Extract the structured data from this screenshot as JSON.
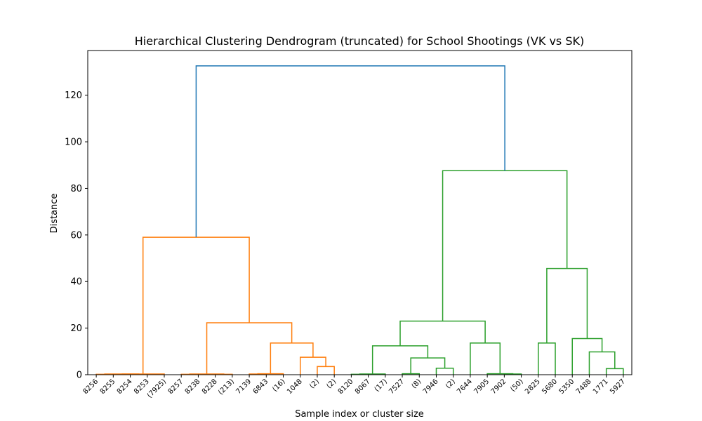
{
  "chart_data": {
    "type": "dendrogram",
    "title": "Hierarchical Clustering Dendrogram (truncated) for School Shootings (VK vs SK)",
    "xlabel": "Sample index or cluster size",
    "ylabel": "Distance",
    "ylim": [
      0,
      135
    ],
    "yticks": [
      0,
      20,
      40,
      60,
      80,
      100,
      120
    ],
    "leaves": [
      "8256",
      "8255",
      "8254",
      "8253",
      "(7925)",
      "8257",
      "8238",
      "8228",
      "(213)",
      "7139",
      "6843",
      "(16)",
      "1048",
      "(2)",
      "(2)",
      "8120",
      "8067",
      "(17)",
      "7527",
      "(8)",
      "7946",
      "(2)",
      "7644",
      "7905",
      "7902",
      "(50)",
      "2825",
      "5680",
      "5350",
      "7488",
      "1771",
      "5927"
    ],
    "link_colors": {
      "root": "#1f77b4",
      "cluster_1": "#ff7f0e",
      "cluster_2": "#2ca02c"
    },
    "merges": [
      {
        "left": 0,
        "right": 1,
        "height": 0.2,
        "color": "cluster_1"
      },
      {
        "left": 2,
        "right": 3,
        "height": 0.2,
        "color": "cluster_1"
      },
      {
        "left": 32,
        "right": 33,
        "height": 0.3,
        "color": "cluster_1"
      },
      {
        "left": 34,
        "right": 4,
        "height": 0.3,
        "color": "cluster_1"
      },
      {
        "left": 5,
        "right": 6,
        "height": 0.2,
        "color": "cluster_1"
      },
      {
        "left": 7,
        "right": 8,
        "height": 0.2,
        "color": "cluster_1"
      },
      {
        "left": 36,
        "right": 37,
        "height": 0.3,
        "color": "cluster_1"
      },
      {
        "left": 9,
        "right": 10,
        "height": 0.3,
        "color": "cluster_1"
      },
      {
        "left": 39,
        "right": 11,
        "height": 0.4,
        "color": "cluster_1"
      },
      {
        "left": 13,
        "right": 14,
        "height": 3.5,
        "color": "cluster_1"
      },
      {
        "left": 12,
        "right": 41,
        "height": 7.5,
        "color": "cluster_1"
      },
      {
        "left": 40,
        "right": 42,
        "height": 13.6,
        "color": "cluster_1"
      },
      {
        "left": 38,
        "right": 43,
        "height": 22.3,
        "color": "cluster_1"
      },
      {
        "left": 35,
        "right": 44,
        "height": 59,
        "color": "cluster_1"
      },
      {
        "left": 15,
        "right": 16,
        "height": 0.2,
        "color": "cluster_2"
      },
      {
        "left": 46,
        "right": 17,
        "height": 0.3,
        "color": "cluster_2"
      },
      {
        "left": 18,
        "right": 19,
        "height": 0.4,
        "color": "cluster_2"
      },
      {
        "left": 20,
        "right": 21,
        "height": 2.8,
        "color": "cluster_2"
      },
      {
        "left": 48,
        "right": 49,
        "height": 7.2,
        "color": "cluster_2"
      },
      {
        "left": 47,
        "right": 50,
        "height": 12.4,
        "color": "cluster_2"
      },
      {
        "left": 24,
        "right": 25,
        "height": 0.3,
        "color": "cluster_2"
      },
      {
        "left": 23,
        "right": 52,
        "height": 0.4,
        "color": "cluster_2"
      },
      {
        "left": 22,
        "right": 53,
        "height": 13.6,
        "color": "cluster_2"
      },
      {
        "left": 51,
        "right": 54,
        "height": 23,
        "color": "cluster_2"
      },
      {
        "left": 26,
        "right": 27,
        "height": 13.6,
        "color": "cluster_2"
      },
      {
        "left": 30,
        "right": 31,
        "height": 2.6,
        "color": "cluster_2"
      },
      {
        "left": 29,
        "right": 57,
        "height": 9.8,
        "color": "cluster_2"
      },
      {
        "left": 28,
        "right": 58,
        "height": 15.5,
        "color": "cluster_2"
      },
      {
        "left": 56,
        "right": 59,
        "height": 45.6,
        "color": "cluster_2"
      },
      {
        "left": 55,
        "right": 60,
        "height": 87.6,
        "color": "cluster_2"
      },
      {
        "left": 45,
        "right": 61,
        "height": 132.6,
        "color": "root"
      }
    ]
  }
}
